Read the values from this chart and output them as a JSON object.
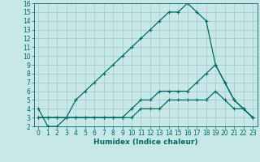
{
  "title": "",
  "xlabel": "Humidex (Indice chaleur)",
  "background_color": "#c8e8e8",
  "grid_color": "#a0c8c8",
  "line_color": "#006868",
  "xlim": [
    -0.5,
    23.5
  ],
  "ylim": [
    2,
    16
  ],
  "yticks": [
    2,
    3,
    4,
    5,
    6,
    7,
    8,
    9,
    10,
    11,
    12,
    13,
    14,
    15,
    16
  ],
  "xticks": [
    0,
    1,
    2,
    3,
    4,
    5,
    6,
    7,
    8,
    9,
    10,
    11,
    12,
    13,
    14,
    15,
    16,
    17,
    18,
    19,
    20,
    21,
    22,
    23
  ],
  "line1_x": [
    0,
    1,
    2,
    3,
    4,
    5,
    6,
    7,
    8,
    9,
    10,
    11,
    12,
    13,
    14,
    15,
    16,
    17,
    18,
    19,
    20,
    21,
    22,
    23
  ],
  "line1_y": [
    4,
    2,
    2,
    3,
    5,
    6,
    7,
    8,
    9,
    10,
    11,
    12,
    13,
    14,
    15,
    15,
    16,
    15,
    14,
    9,
    7,
    5,
    4,
    3
  ],
  "line2_x": [
    0,
    1,
    2,
    3,
    4,
    5,
    6,
    7,
    8,
    9,
    10,
    11,
    12,
    13,
    14,
    15,
    16,
    17,
    18,
    19,
    20,
    21,
    22,
    23
  ],
  "line2_y": [
    3,
    3,
    3,
    3,
    3,
    3,
    3,
    3,
    3,
    3,
    4,
    5,
    5,
    6,
    6,
    6,
    6,
    7,
    8,
    9,
    7,
    5,
    4,
    3
  ],
  "line3_x": [
    0,
    1,
    2,
    3,
    4,
    5,
    6,
    7,
    8,
    9,
    10,
    11,
    12,
    13,
    14,
    15,
    16,
    17,
    18,
    19,
    20,
    21,
    22,
    23
  ],
  "line3_y": [
    3,
    3,
    3,
    3,
    3,
    3,
    3,
    3,
    3,
    3,
    3,
    4,
    4,
    4,
    5,
    5,
    5,
    5,
    5,
    6,
    5,
    4,
    4,
    3
  ],
  "tick_fontsize": 5.5,
  "xlabel_fontsize": 6.5,
  "linewidth": 0.9,
  "markersize": 3.5
}
